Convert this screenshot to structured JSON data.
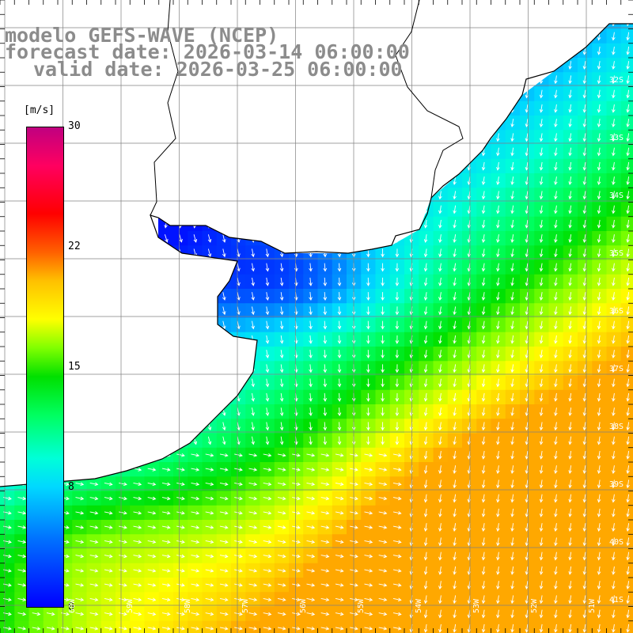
{
  "title": {
    "line1": "modelo GEFS-WAVE (NCEP)",
    "line2": "forecast date: 2026-03-14 06:00:00",
    "line3": "valid date: 2026-03-25 06:00:00"
  },
  "colorbar": {
    "unit": "[m/s]",
    "ticks": [
      {
        "label": "30",
        "value": 30
      },
      {
        "label": "22",
        "value": 22
      },
      {
        "label": "15",
        "value": 15
      },
      {
        "label": "8",
        "value": 8
      },
      {
        "label": "0",
        "value": 0
      }
    ],
    "colors": [
      "#0000ff",
      "#00d8ff",
      "#00ff60",
      "#ffff00",
      "#ff0000",
      "#c00080"
    ]
  },
  "map": {
    "land_color": "#ffffff",
    "coast_color": "#000000",
    "grid_color": "#808080",
    "arrow_color": "#ffffff",
    "lat_labels": [
      "32S",
      "33S",
      "34S",
      "35S",
      "36S",
      "37S",
      "38S",
      "39S",
      "40S",
      "41S"
    ],
    "lon_labels": [
      "60W",
      "59W",
      "58W",
      "57W",
      "56W",
      "55W",
      "54W",
      "53W",
      "52W",
      "51W"
    ]
  }
}
